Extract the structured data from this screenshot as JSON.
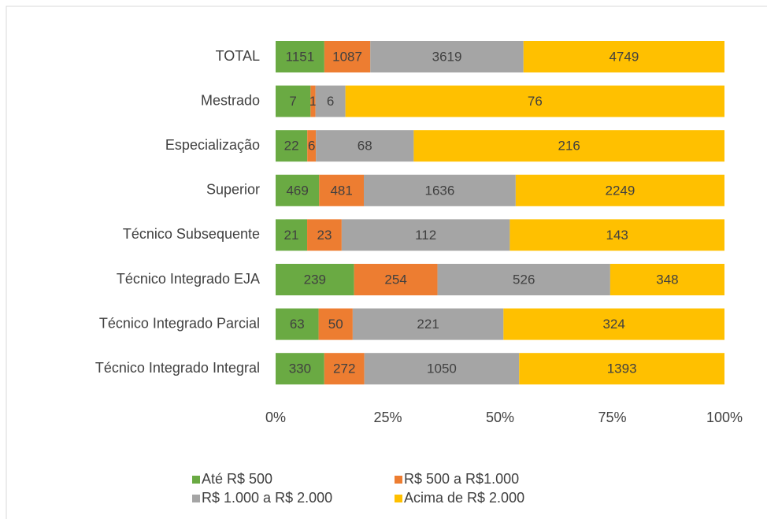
{
  "chart_data": {
    "type": "bar",
    "orientation": "horizontal",
    "stacking": "percent",
    "categories": [
      "TOTAL",
      "Mestrado",
      "Especialização",
      "Superior",
      "Técnico Subsequente",
      "Técnico Integrado EJA",
      "Técnico Integrado Parcial",
      "Técnico Integrado Integral"
    ],
    "series": [
      {
        "name": "Até R$ 500",
        "color": "#6aaa43",
        "values": [
          1151,
          7,
          22,
          469,
          21,
          239,
          63,
          330
        ]
      },
      {
        "name": "R$ 500 a R$1.000",
        "color": "#ed7d31",
        "values": [
          1087,
          1,
          6,
          481,
          23,
          254,
          50,
          272
        ]
      },
      {
        "name": "R$ 1.000 a R$ 2.000",
        "color": "#a5a5a5",
        "values": [
          3619,
          6,
          68,
          1636,
          112,
          526,
          221,
          1050
        ]
      },
      {
        "name": "Acima de R$ 2.000",
        "color": "#ffc000",
        "values": [
          4749,
          76,
          216,
          2249,
          143,
          348,
          324,
          1393
        ]
      }
    ],
    "xlim": [
      0,
      100
    ],
    "xticks": [
      {
        "value": 0,
        "label": "0%"
      },
      {
        "value": 25,
        "label": "25%"
      },
      {
        "value": 50,
        "label": "50%"
      },
      {
        "value": 75,
        "label": "75%"
      },
      {
        "value": 100,
        "label": "100%"
      }
    ],
    "legend": "bottom"
  }
}
